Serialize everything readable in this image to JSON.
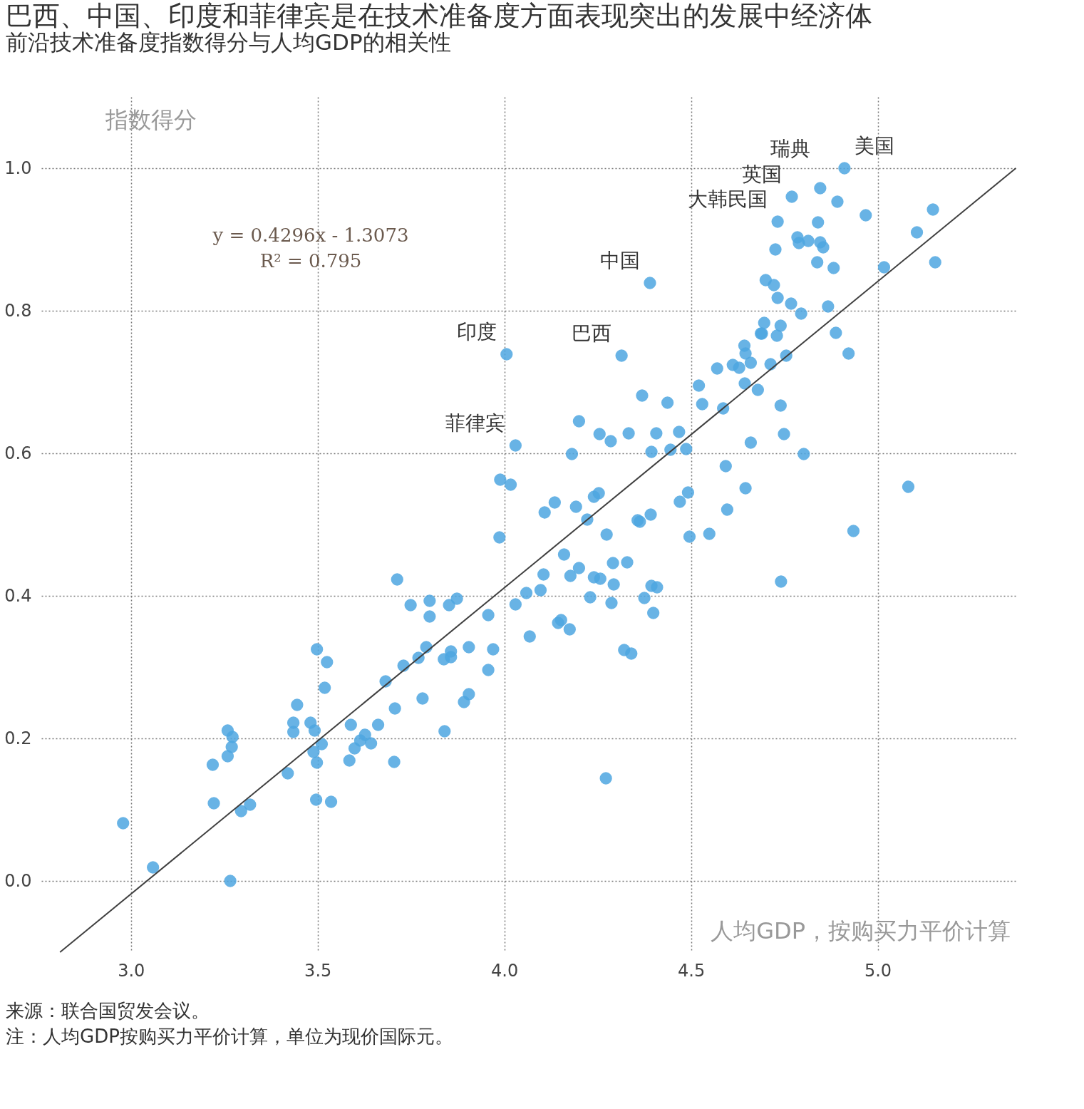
{
  "chart_data": {
    "type": "scatter",
    "title": "巴西、中国、印度和菲律宾是在技术准备度方面表现突出的发展中经济体",
    "subtitle": "前沿技术准备度指数得分与人均GDP的相关性",
    "xlabel": "人均GDP，按购买力平价计算",
    "ylabel": "指数得分",
    "xlim": [
      2.76,
      5.375
    ],
    "ylim": [
      -0.1,
      1.1
    ],
    "xticks": [
      {
        "value": 3,
        "label": "3.0"
      },
      3.5,
      {
        "value": 4,
        "label": "4.0"
      },
      4.5,
      {
        "value": 5,
        "label": "5.0"
      }
    ],
    "yticks": [
      {
        "value": 0,
        "label": "0.0"
      },
      0.2,
      0.4,
      0.6,
      0.8,
      {
        "value": 1,
        "label": "1.0"
      }
    ],
    "grid": true,
    "series": [
      {
        "color": "#4da6e0",
        "marker": "circle",
        "x": [
          2.979,
          3.059,
          3.266,
          3.219,
          3.222,
          3.259,
          3.272,
          3.27,
          3.259,
          3.295,
          3.319,
          3.42,
          3.435,
          3.435,
          3.445,
          3.481,
          3.492,
          3.489,
          3.498,
          3.511,
          3.496,
          3.536,
          3.498,
          3.525,
          3.519,
          3.589,
          3.585,
          3.599,
          3.614,
          3.627,
          3.643,
          3.662,
          3.705,
          3.707,
          3.682,
          3.73,
          3.713,
          3.749,
          3.77,
          3.791,
          3.781,
          3.8,
          3.8,
          3.84,
          3.838,
          3.857,
          3.857,
          3.852,
          3.873,
          3.892,
          3.905,
          3.905,
          3.957,
          3.957,
          3.97,
          3.987,
          3.989,
          4.017,
          4.03,
          4.006,
          4.03,
          4.059,
          4.068,
          4.097,
          4.105,
          4.108,
          4.135,
          4.144,
          4.152,
          4.16,
          4.175,
          4.177,
          4.181,
          4.192,
          4.2,
          4.2,
          4.222,
          4.23,
          4.24,
          4.24,
          4.253,
          4.257,
          4.255,
          4.274,
          4.272,
          4.285,
          4.287,
          4.291,
          4.293,
          4.314,
          4.329,
          4.333,
          4.321,
          4.34,
          4.357,
          4.363,
          4.369,
          4.375,
          4.39,
          4.392,
          4.394,
          4.394,
          4.399,
          4.409,
          4.407,
          4.437,
          4.445,
          4.468,
          4.47,
          4.487,
          4.492,
          4.496,
          4.521,
          4.53,
          4.549,
          4.57,
          4.586,
          4.593,
          4.597,
          4.612,
          4.629,
          4.643,
          4.646,
          4.644,
          4.646,
          4.66,
          4.66,
          4.679,
          4.687,
          4.696,
          4.69,
          4.7,
          4.713,
          4.722,
          4.73,
          4.732,
          4.726,
          4.732,
          4.74,
          4.74,
          4.741,
          4.749,
          4.755,
          4.768,
          4.77,
          4.785,
          4.789,
          4.795,
          4.802,
          4.814,
          4.838,
          4.84,
          4.846,
          4.846,
          4.854,
          4.867,
          4.882,
          4.888,
          4.892,
          4.911,
          4.922,
          4.935,
          4.968,
          5.017,
          5.082,
          5.105,
          5.148,
          5.154
        ],
        "values": [
          0.081,
          0.019,
          0.0,
          0.163,
          0.109,
          0.211,
          0.202,
          0.188,
          0.175,
          0.098,
          0.107,
          0.151,
          0.222,
          0.209,
          0.247,
          0.222,
          0.211,
          0.181,
          0.166,
          0.192,
          0.114,
          0.111,
          0.325,
          0.307,
          0.271,
          0.219,
          0.169,
          0.186,
          0.197,
          0.205,
          0.193,
          0.219,
          0.167,
          0.242,
          0.28,
          0.302,
          0.423,
          0.387,
          0.313,
          0.328,
          0.256,
          0.393,
          0.371,
          0.21,
          0.311,
          0.322,
          0.314,
          0.387,
          0.396,
          0.251,
          0.328,
          0.262,
          0.296,
          0.373,
          0.325,
          0.482,
          0.563,
          0.556,
          0.611,
          0.739,
          0.388,
          0.404,
          0.343,
          0.408,
          0.43,
          0.517,
          0.531,
          0.362,
          0.366,
          0.458,
          0.353,
          0.428,
          0.599,
          0.525,
          0.645,
          0.439,
          0.507,
          0.398,
          0.539,
          0.426,
          0.544,
          0.424,
          0.627,
          0.486,
          0.144,
          0.617,
          0.39,
          0.446,
          0.416,
          0.737,
          0.447,
          0.628,
          0.324,
          0.319,
          0.506,
          0.504,
          0.681,
          0.397,
          0.839,
          0.514,
          0.602,
          0.414,
          0.376,
          0.412,
          0.628,
          0.671,
          0.605,
          0.63,
          0.532,
          0.606,
          0.545,
          0.483,
          0.695,
          0.669,
          0.487,
          0.719,
          0.663,
          0.582,
          0.521,
          0.724,
          0.72,
          0.751,
          0.74,
          0.698,
          0.551,
          0.727,
          0.615,
          0.689,
          0.768,
          0.783,
          0.768,
          0.843,
          0.725,
          0.836,
          0.765,
          0.818,
          0.886,
          0.925,
          0.779,
          0.667,
          0.42,
          0.627,
          0.737,
          0.81,
          0.96,
          0.903,
          0.895,
          0.796,
          0.599,
          0.898,
          0.868,
          0.924,
          0.972,
          0.896,
          0.889,
          0.806,
          0.86,
          0.769,
          0.953,
          1.0,
          0.74,
          0.491,
          0.934,
          0.861,
          0.553,
          0.91,
          0.942,
          0.868
        ]
      },
      {
        "type": "line",
        "color": "#404040",
        "x": [
          2.81,
          5.37
        ],
        "values": [
          -0.1,
          1.0
        ]
      }
    ],
    "annotations": [
      {
        "text": "美国",
        "x": 4.911,
        "y": 1.0
      },
      {
        "text": "瑞典",
        "x": 4.846,
        "y": 0.972
      },
      {
        "text": "英国",
        "x": 4.77,
        "y": 0.96
      },
      {
        "text": "大韩民国",
        "x": 4.732,
        "y": 0.925
      },
      {
        "text": "中国",
        "x": 4.39,
        "y": 0.839
      },
      {
        "text": "巴西",
        "x": 4.314,
        "y": 0.737
      },
      {
        "text": "印度",
        "x": 4.006,
        "y": 0.739
      },
      {
        "text": "菲律宾",
        "x": 4.03,
        "y": 0.611
      },
      "y = 0.4296x - 1.3073",
      "R² = 0.795",
      "来源：联合国贸发会议。",
      "注：人均GDP按购买力平价计算，单位为现价国际元。"
    ]
  }
}
